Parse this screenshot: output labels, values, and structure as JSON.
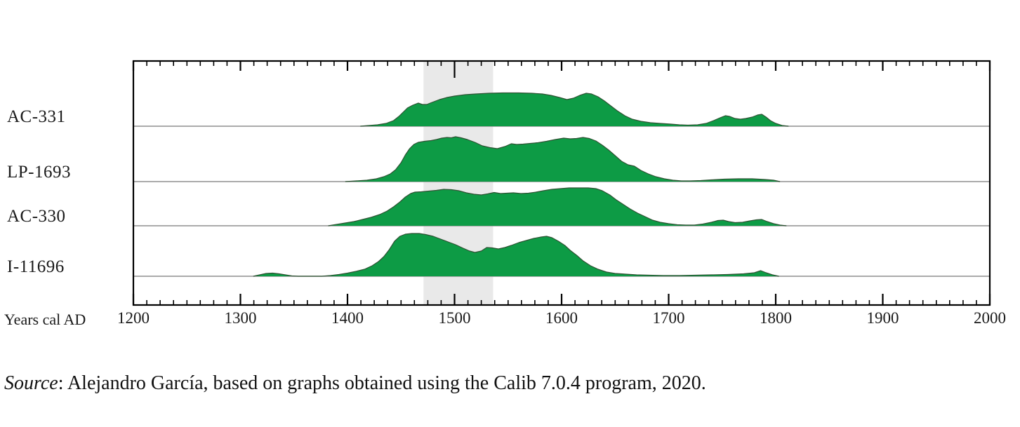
{
  "chart_data": {
    "type": "area",
    "title": "",
    "xlabel": "Years cal AD",
    "ylabel": "",
    "xlim": [
      1200,
      2000
    ],
    "x_major_tick_step": 100,
    "x_minor_tick_step": 12.5,
    "x_ticks": [
      1200,
      1300,
      1400,
      1500,
      1600,
      1700,
      1800,
      1900,
      2000
    ],
    "grid": false,
    "legend_position": "left-row-labels",
    "highlight_band": {
      "from": 1471,
      "to": 1536,
      "color": "#e9e9e9"
    },
    "colors": {
      "fill": "#0d9b45",
      "outline": "#2e5233",
      "baseline": "#8f8f8f",
      "frame": "#000000"
    },
    "value_note": "heights are relative calibrated probability (unitless, per-sample scaled)",
    "series": [
      {
        "name": "AC-331",
        "points": [
          [
            1412,
            0
          ],
          [
            1420,
            1
          ],
          [
            1428,
            2
          ],
          [
            1436,
            4
          ],
          [
            1443,
            8
          ],
          [
            1448,
            14
          ],
          [
            1452,
            20
          ],
          [
            1456,
            26
          ],
          [
            1461,
            30
          ],
          [
            1466,
            33
          ],
          [
            1470,
            31
          ],
          [
            1474,
            31
          ],
          [
            1479,
            34
          ],
          [
            1486,
            38
          ],
          [
            1493,
            41
          ],
          [
            1500,
            43
          ],
          [
            1510,
            45
          ],
          [
            1520,
            46
          ],
          [
            1532,
            47
          ],
          [
            1545,
            47.5
          ],
          [
            1560,
            47.5
          ],
          [
            1572,
            47
          ],
          [
            1582,
            46
          ],
          [
            1590,
            44
          ],
          [
            1598,
            41
          ],
          [
            1605,
            38
          ],
          [
            1611,
            40
          ],
          [
            1617,
            44
          ],
          [
            1623,
            47
          ],
          [
            1628,
            46
          ],
          [
            1634,
            42
          ],
          [
            1640,
            36
          ],
          [
            1646,
            29
          ],
          [
            1652,
            22
          ],
          [
            1659,
            15
          ],
          [
            1666,
            10
          ],
          [
            1674,
            7
          ],
          [
            1683,
            5
          ],
          [
            1692,
            4
          ],
          [
            1702,
            3
          ],
          [
            1710,
            2
          ],
          [
            1718,
            1.5
          ],
          [
            1727,
            2
          ],
          [
            1735,
            4
          ],
          [
            1742,
            8
          ],
          [
            1748,
            12
          ],
          [
            1753,
            15
          ],
          [
            1757,
            14
          ],
          [
            1762,
            11
          ],
          [
            1767,
            10
          ],
          [
            1772,
            11
          ],
          [
            1778,
            13
          ],
          [
            1783,
            16
          ],
          [
            1787,
            17
          ],
          [
            1791,
            13
          ],
          [
            1795,
            8
          ],
          [
            1800,
            4
          ],
          [
            1806,
            1
          ],
          [
            1812,
            0
          ]
        ]
      },
      {
        "name": "LP-1693",
        "points": [
          [
            1398,
            0
          ],
          [
            1408,
            1
          ],
          [
            1418,
            2
          ],
          [
            1427,
            4
          ],
          [
            1434,
            7
          ],
          [
            1440,
            11
          ],
          [
            1445,
            17
          ],
          [
            1450,
            27
          ],
          [
            1454,
            38
          ],
          [
            1458,
            47
          ],
          [
            1462,
            53
          ],
          [
            1466,
            56
          ],
          [
            1472,
            57.5
          ],
          [
            1478,
            58.5
          ],
          [
            1483,
            60
          ],
          [
            1488,
            62
          ],
          [
            1493,
            63
          ],
          [
            1497,
            62.5
          ],
          [
            1501,
            64
          ],
          [
            1506,
            62.5
          ],
          [
            1512,
            60
          ],
          [
            1519,
            56
          ],
          [
            1526,
            51
          ],
          [
            1533,
            48.5
          ],
          [
            1540,
            47
          ],
          [
            1547,
            50
          ],
          [
            1553,
            54
          ],
          [
            1558,
            53
          ],
          [
            1564,
            53.5
          ],
          [
            1571,
            54.5
          ],
          [
            1578,
            55.5
          ],
          [
            1586,
            57.5
          ],
          [
            1594,
            60
          ],
          [
            1602,
            62
          ],
          [
            1608,
            61
          ],
          [
            1614,
            61.5
          ],
          [
            1620,
            63
          ],
          [
            1626,
            61.5
          ],
          [
            1632,
            58
          ],
          [
            1638,
            52
          ],
          [
            1644,
            45
          ],
          [
            1650,
            37
          ],
          [
            1656,
            29
          ],
          [
            1662,
            24
          ],
          [
            1668,
            22
          ],
          [
            1674,
            16
          ],
          [
            1681,
            11
          ],
          [
            1688,
            7
          ],
          [
            1696,
            4
          ],
          [
            1704,
            2
          ],
          [
            1712,
            1
          ],
          [
            1720,
            1
          ],
          [
            1730,
            1.5
          ],
          [
            1740,
            2.5
          ],
          [
            1752,
            3.5
          ],
          [
            1765,
            4
          ],
          [
            1778,
            4
          ],
          [
            1790,
            3
          ],
          [
            1798,
            2
          ],
          [
            1804,
            0
          ]
        ]
      },
      {
        "name": "AC-330",
        "points": [
          [
            1382,
            0
          ],
          [
            1390,
            2
          ],
          [
            1398,
            4
          ],
          [
            1406,
            6
          ],
          [
            1414,
            9
          ],
          [
            1422,
            12
          ],
          [
            1430,
            16
          ],
          [
            1437,
            21
          ],
          [
            1443,
            27
          ],
          [
            1449,
            34
          ],
          [
            1454,
            41
          ],
          [
            1459,
            46
          ],
          [
            1463,
            48
          ],
          [
            1469,
            48.5
          ],
          [
            1476,
            49.5
          ],
          [
            1483,
            50.5
          ],
          [
            1490,
            52
          ],
          [
            1497,
            51.5
          ],
          [
            1504,
            50
          ],
          [
            1511,
            47
          ],
          [
            1518,
            45
          ],
          [
            1525,
            44
          ],
          [
            1531,
            45.5
          ],
          [
            1537,
            47.5
          ],
          [
            1543,
            46
          ],
          [
            1549,
            46.5
          ],
          [
            1555,
            47
          ],
          [
            1562,
            46
          ],
          [
            1569,
            46.5
          ],
          [
            1576,
            48
          ],
          [
            1583,
            50
          ],
          [
            1591,
            52
          ],
          [
            1599,
            53
          ],
          [
            1607,
            54
          ],
          [
            1616,
            54
          ],
          [
            1625,
            54
          ],
          [
            1632,
            53
          ],
          [
            1638,
            50
          ],
          [
            1645,
            44
          ],
          [
            1651,
            37
          ],
          [
            1658,
            30
          ],
          [
            1664,
            24
          ],
          [
            1671,
            18
          ],
          [
            1678,
            13
          ],
          [
            1685,
            8
          ],
          [
            1692,
            5
          ],
          [
            1700,
            3
          ],
          [
            1708,
            1.5
          ],
          [
            1716,
            1
          ],
          [
            1724,
            1
          ],
          [
            1732,
            2.5
          ],
          [
            1740,
            5
          ],
          [
            1746,
            7.5
          ],
          [
            1751,
            8
          ],
          [
            1756,
            6
          ],
          [
            1762,
            4.5
          ],
          [
            1769,
            5
          ],
          [
            1776,
            7
          ],
          [
            1782,
            8.5
          ],
          [
            1787,
            9
          ],
          [
            1792,
            6
          ],
          [
            1798,
            3
          ],
          [
            1804,
            1
          ],
          [
            1810,
            0
          ]
        ]
      },
      {
        "name": "I-11696",
        "points": [
          [
            1312,
            0
          ],
          [
            1318,
            2
          ],
          [
            1324,
            4
          ],
          [
            1330,
            4.5
          ],
          [
            1336,
            3.5
          ],
          [
            1342,
            2
          ],
          [
            1348,
            0.5
          ],
          [
            1354,
            0
          ],
          [
            1376,
            0
          ],
          [
            1384,
            1
          ],
          [
            1392,
            2.5
          ],
          [
            1400,
            4.5
          ],
          [
            1408,
            7
          ],
          [
            1416,
            10
          ],
          [
            1423,
            15
          ],
          [
            1429,
            21
          ],
          [
            1434,
            28
          ],
          [
            1439,
            38
          ],
          [
            1444,
            50
          ],
          [
            1449,
            57
          ],
          [
            1454,
            60
          ],
          [
            1460,
            61
          ],
          [
            1467,
            61
          ],
          [
            1473,
            59.5
          ],
          [
            1480,
            57
          ],
          [
            1487,
            53
          ],
          [
            1494,
            49
          ],
          [
            1501,
            45
          ],
          [
            1508,
            40
          ],
          [
            1514,
            36
          ],
          [
            1519,
            34
          ],
          [
            1525,
            36
          ],
          [
            1530,
            41
          ],
          [
            1535,
            40.5
          ],
          [
            1541,
            39
          ],
          [
            1547,
            41
          ],
          [
            1553,
            44
          ],
          [
            1560,
            48
          ],
          [
            1567,
            51
          ],
          [
            1574,
            54
          ],
          [
            1581,
            56
          ],
          [
            1586,
            57
          ],
          [
            1591,
            55
          ],
          [
            1597,
            50
          ],
          [
            1603,
            44
          ],
          [
            1608,
            37
          ],
          [
            1614,
            30
          ],
          [
            1620,
            22
          ],
          [
            1627,
            15
          ],
          [
            1634,
            10
          ],
          [
            1642,
            6
          ],
          [
            1650,
            4
          ],
          [
            1660,
            3
          ],
          [
            1670,
            2
          ],
          [
            1682,
            1.5
          ],
          [
            1695,
            1
          ],
          [
            1710,
            1
          ],
          [
            1725,
            1.5
          ],
          [
            1740,
            2
          ],
          [
            1755,
            2.5
          ],
          [
            1770,
            3.5
          ],
          [
            1780,
            5
          ],
          [
            1786,
            8
          ],
          [
            1791,
            5
          ],
          [
            1797,
            2
          ],
          [
            1803,
            0
          ]
        ]
      }
    ]
  },
  "source_note": {
    "italic": "Source",
    "rest": ": Alejandro García, based on graphs obtained using the Calib 7.0.4 program, 2020."
  }
}
